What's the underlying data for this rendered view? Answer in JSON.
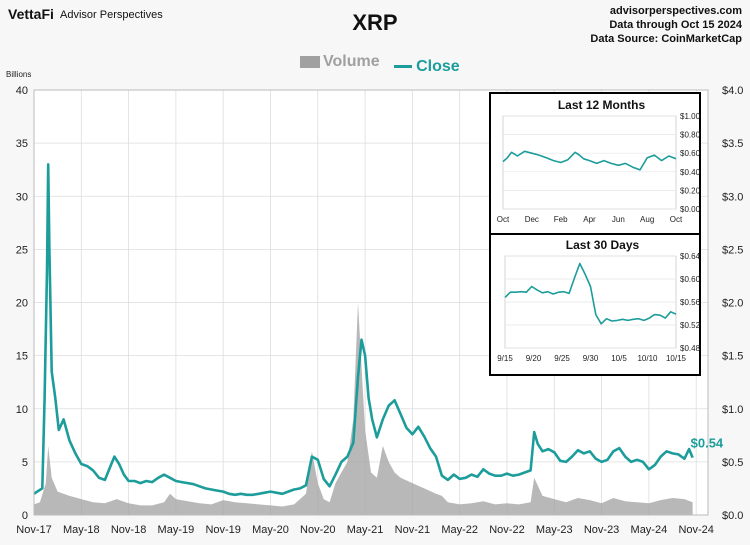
{
  "header": {
    "logo_text": "VettaFi",
    "brand_name": "Advisor Perspectives",
    "title": "XRP",
    "source_lines": [
      "advisorperspectives.com",
      "Data through Oct 15 2024",
      "Data Source: CoinMarketCap"
    ]
  },
  "legend": {
    "volume_label": "Volume",
    "close_label": "Close"
  },
  "colors": {
    "close": "#1c9d9b",
    "volume": "#a0a0a0",
    "background": "#f7f7f7",
    "grid": "#dddddd"
  },
  "chart_data": [
    {
      "type": "area",
      "title": "XRP",
      "ylabel": "Billions",
      "y_left_lim": [
        0,
        40
      ],
      "y_left_ticks": [
        "0",
        "5",
        "10",
        "15",
        "20",
        "25",
        "30",
        "35",
        "40"
      ],
      "y_right_lim": [
        0,
        4
      ],
      "y_right_ticks": [
        "$0.0",
        "$0.5",
        "$1.0",
        "$1.5",
        "$2.0",
        "$2.5",
        "$3.0",
        "$3.5",
        "$4.0"
      ],
      "x_ticks": [
        "Nov-17",
        "May-18",
        "Nov-18",
        "May-19",
        "Nov-19",
        "May-20",
        "Nov-20",
        "May-21",
        "Nov-21",
        "May-22",
        "Nov-22",
        "May-23",
        "Nov-23",
        "May-24",
        "Nov-24"
      ],
      "last_value_label": "$0.54",
      "grid": true,
      "series": [
        {
          "name": "Close",
          "axis": "right",
          "points": [
            [
              0,
              0.2
            ],
            [
              0.4,
              0.23
            ],
            [
              0.7,
              0.25
            ],
            [
              0.9,
              1.1
            ],
            [
              1.1,
              2.3
            ],
            [
              1.2,
              3.3
            ],
            [
              1.3,
              2.5
            ],
            [
              1.5,
              1.35
            ],
            [
              1.8,
              1.1
            ],
            [
              2.1,
              0.8
            ],
            [
              2.5,
              0.9
            ],
            [
              3,
              0.7
            ],
            [
              3.5,
              0.58
            ],
            [
              4,
              0.48
            ],
            [
              4.5,
              0.46
            ],
            [
              5,
              0.42
            ],
            [
              5.5,
              0.35
            ],
            [
              6,
              0.33
            ],
            [
              6.5,
              0.47
            ],
            [
              6.8,
              0.55
            ],
            [
              7.2,
              0.48
            ],
            [
              7.6,
              0.38
            ],
            [
              8,
              0.32
            ],
            [
              8.5,
              0.32
            ],
            [
              9,
              0.3
            ],
            [
              9.5,
              0.32
            ],
            [
              10,
              0.31
            ],
            [
              10.5,
              0.35
            ],
            [
              11,
              0.38
            ],
            [
              11.5,
              0.35
            ],
            [
              12,
              0.32
            ],
            [
              12.5,
              0.31
            ],
            [
              13,
              0.3
            ],
            [
              13.5,
              0.29
            ],
            [
              14,
              0.27
            ],
            [
              14.5,
              0.25
            ],
            [
              15,
              0.24
            ],
            [
              15.5,
              0.23
            ],
            [
              16,
              0.22
            ],
            [
              16.5,
              0.2
            ],
            [
              17,
              0.19
            ],
            [
              17.5,
              0.2
            ],
            [
              18,
              0.19
            ],
            [
              18.5,
              0.19
            ],
            [
              19,
              0.2
            ],
            [
              19.5,
              0.21
            ],
            [
              20,
              0.22
            ],
            [
              20.5,
              0.21
            ],
            [
              21,
              0.2
            ],
            [
              21.5,
              0.22
            ],
            [
              22,
              0.24
            ],
            [
              22.5,
              0.25
            ],
            [
              23,
              0.28
            ],
            [
              23.5,
              0.55
            ],
            [
              24,
              0.52
            ],
            [
              24.5,
              0.34
            ],
            [
              25,
              0.27
            ],
            [
              25.5,
              0.38
            ],
            [
              26,
              0.5
            ],
            [
              26.5,
              0.55
            ],
            [
              27,
              0.68
            ],
            [
              27.4,
              1.3
            ],
            [
              27.7,
              1.65
            ],
            [
              28,
              1.5
            ],
            [
              28.3,
              1.1
            ],
            [
              28.6,
              0.9
            ],
            [
              29,
              0.73
            ],
            [
              29.5,
              0.9
            ],
            [
              30,
              1.03
            ],
            [
              30.5,
              1.08
            ],
            [
              31,
              0.95
            ],
            [
              31.5,
              0.82
            ],
            [
              32,
              0.76
            ],
            [
              32.5,
              0.83
            ],
            [
              33,
              0.74
            ],
            [
              33.5,
              0.63
            ],
            [
              34,
              0.55
            ],
            [
              34.5,
              0.37
            ],
            [
              35,
              0.33
            ],
            [
              35.5,
              0.38
            ],
            [
              36,
              0.34
            ],
            [
              36.5,
              0.35
            ],
            [
              37,
              0.38
            ],
            [
              37.5,
              0.36
            ],
            [
              38,
              0.43
            ],
            [
              38.5,
              0.39
            ],
            [
              39,
              0.37
            ],
            [
              39.5,
              0.37
            ],
            [
              40,
              0.39
            ],
            [
              40.5,
              0.37
            ],
            [
              41,
              0.38
            ],
            [
              41.5,
              0.4
            ],
            [
              42,
              0.42
            ],
            [
              42.3,
              0.78
            ],
            [
              42.6,
              0.67
            ],
            [
              43,
              0.6
            ],
            [
              43.5,
              0.62
            ],
            [
              44,
              0.59
            ],
            [
              44.5,
              0.51
            ],
            [
              45,
              0.5
            ],
            [
              45.5,
              0.55
            ],
            [
              46,
              0.61
            ],
            [
              46.5,
              0.58
            ],
            [
              47,
              0.6
            ],
            [
              47.5,
              0.53
            ],
            [
              48,
              0.5
            ],
            [
              48.5,
              0.52
            ],
            [
              49,
              0.6
            ],
            [
              49.5,
              0.63
            ],
            [
              50,
              0.55
            ],
            [
              50.5,
              0.5
            ],
            [
              51,
              0.52
            ],
            [
              51.5,
              0.5
            ],
            [
              52,
              0.43
            ],
            [
              52.5,
              0.47
            ],
            [
              53,
              0.55
            ],
            [
              53.5,
              0.6
            ],
            [
              54,
              0.58
            ],
            [
              54.5,
              0.57
            ],
            [
              55,
              0.53
            ],
            [
              55.4,
              0.62
            ],
            [
              55.7,
              0.54
            ]
          ]
        },
        {
          "name": "Volume",
          "axis": "left",
          "points": [
            [
              0,
              1.0
            ],
            [
              0.5,
              1.2
            ],
            [
              1,
              3.0
            ],
            [
              1.2,
              6.5
            ],
            [
              1.5,
              3.5
            ],
            [
              2,
              2.2
            ],
            [
              3,
              1.8
            ],
            [
              4,
              1.5
            ],
            [
              5,
              1.2
            ],
            [
              6,
              1.1
            ],
            [
              7,
              1.5
            ],
            [
              8,
              1.1
            ],
            [
              9,
              0.9
            ],
            [
              10,
              0.9
            ],
            [
              11,
              1.2
            ],
            [
              11.5,
              2.0
            ],
            [
              12,
              1.5
            ],
            [
              13,
              1.3
            ],
            [
              14,
              1.1
            ],
            [
              15,
              1.0
            ],
            [
              16,
              1.4
            ],
            [
              17,
              1.2
            ],
            [
              18,
              1.1
            ],
            [
              19,
              1.0
            ],
            [
              20,
              0.9
            ],
            [
              21,
              0.8
            ],
            [
              22,
              1.0
            ],
            [
              23,
              2.0
            ],
            [
              23.5,
              6.0
            ],
            [
              24,
              3.0
            ],
            [
              24.5,
              1.5
            ],
            [
              25,
              1.2
            ],
            [
              25.5,
              3.0
            ],
            [
              26,
              4.0
            ],
            [
              26.5,
              5.0
            ],
            [
              27,
              9.0
            ],
            [
              27.4,
              20.0
            ],
            [
              27.7,
              14.0
            ],
            [
              28,
              8.0
            ],
            [
              28.5,
              4.0
            ],
            [
              29,
              3.5
            ],
            [
              29.5,
              6.5
            ],
            [
              30,
              5.0
            ],
            [
              30.5,
              4.0
            ],
            [
              31,
              3.5
            ],
            [
              32,
              3.0
            ],
            [
              33,
              2.5
            ],
            [
              34,
              2.0
            ],
            [
              34.5,
              1.8
            ],
            [
              35,
              1.2
            ],
            [
              36,
              1.0
            ],
            [
              37,
              1.1
            ],
            [
              38,
              1.3
            ],
            [
              39,
              1.0
            ],
            [
              40,
              1.1
            ],
            [
              41,
              1.0
            ],
            [
              42,
              1.2
            ],
            [
              42.3,
              3.5
            ],
            [
              43,
              1.8
            ],
            [
              44,
              1.5
            ],
            [
              45,
              1.2
            ],
            [
              46,
              1.6
            ],
            [
              47,
              1.4
            ],
            [
              48,
              1.1
            ],
            [
              49,
              1.6
            ],
            [
              50,
              1.3
            ],
            [
              51,
              1.2
            ],
            [
              52,
              1.1
            ],
            [
              53,
              1.4
            ],
            [
              54,
              1.6
            ],
            [
              55,
              1.5
            ],
            [
              55.7,
              1.2
            ]
          ]
        }
      ]
    },
    {
      "type": "line",
      "title": "Last 12 Months",
      "ylim": [
        0,
        1.0
      ],
      "y_ticks": [
        "$0.00",
        "$0.20",
        "$0.40",
        "$0.60",
        "$0.80",
        "$1.00"
      ],
      "x_ticks": [
        "Oct",
        "Dec",
        "Feb",
        "Apr",
        "Jun",
        "Aug",
        "Oct"
      ],
      "series": [
        {
          "name": "Close",
          "points": [
            [
              0,
              0.51
            ],
            [
              0.3,
              0.55
            ],
            [
              0.6,
              0.61
            ],
            [
              1,
              0.57
            ],
            [
              1.5,
              0.62
            ],
            [
              2,
              0.6
            ],
            [
              2.5,
              0.58
            ],
            [
              3,
              0.55
            ],
            [
              3.5,
              0.52
            ],
            [
              4,
              0.5
            ],
            [
              4.5,
              0.53
            ],
            [
              5,
              0.61
            ],
            [
              5.3,
              0.58
            ],
            [
              5.6,
              0.54
            ],
            [
              6,
              0.52
            ],
            [
              6.5,
              0.49
            ],
            [
              7,
              0.52
            ],
            [
              7.5,
              0.49
            ],
            [
              8,
              0.47
            ],
            [
              8.5,
              0.49
            ],
            [
              9,
              0.45
            ],
            [
              9.5,
              0.42
            ],
            [
              10,
              0.55
            ],
            [
              10.5,
              0.58
            ],
            [
              11,
              0.52
            ],
            [
              11.5,
              0.57
            ],
            [
              12,
              0.54
            ]
          ]
        }
      ]
    },
    {
      "type": "line",
      "title": "Last 30 Days",
      "ylim": [
        0.48,
        0.64
      ],
      "y_ticks": [
        "$0.48",
        "$0.52",
        "$0.56",
        "$0.60",
        "$0.64"
      ],
      "x_ticks": [
        "9/15",
        "9/20",
        "9/25",
        "9/30",
        "10/5",
        "10/10",
        "10/15"
      ],
      "series": [
        {
          "name": "Close",
          "points": [
            [
              0,
              0.568
            ],
            [
              1,
              0.577
            ],
            [
              2,
              0.577
            ],
            [
              3,
              0.578
            ],
            [
              4,
              0.577
            ],
            [
              5,
              0.587
            ],
            [
              6,
              0.581
            ],
            [
              7,
              0.576
            ],
            [
              8,
              0.578
            ],
            [
              9,
              0.574
            ],
            [
              10,
              0.577
            ],
            [
              11,
              0.578
            ],
            [
              12,
              0.575
            ],
            [
              13,
              0.602
            ],
            [
              14,
              0.627
            ],
            [
              15,
              0.608
            ],
            [
              16,
              0.587
            ],
            [
              17,
              0.538
            ],
            [
              18,
              0.522
            ],
            [
              19,
              0.531
            ],
            [
              20,
              0.527
            ],
            [
              21,
              0.528
            ],
            [
              22,
              0.53
            ],
            [
              23,
              0.528
            ],
            [
              24,
              0.53
            ],
            [
              25,
              0.531
            ],
            [
              26,
              0.528
            ],
            [
              27,
              0.532
            ],
            [
              28,
              0.538
            ],
            [
              29,
              0.537
            ],
            [
              30,
              0.532
            ],
            [
              31,
              0.543
            ],
            [
              32,
              0.539
            ]
          ]
        }
      ]
    }
  ]
}
